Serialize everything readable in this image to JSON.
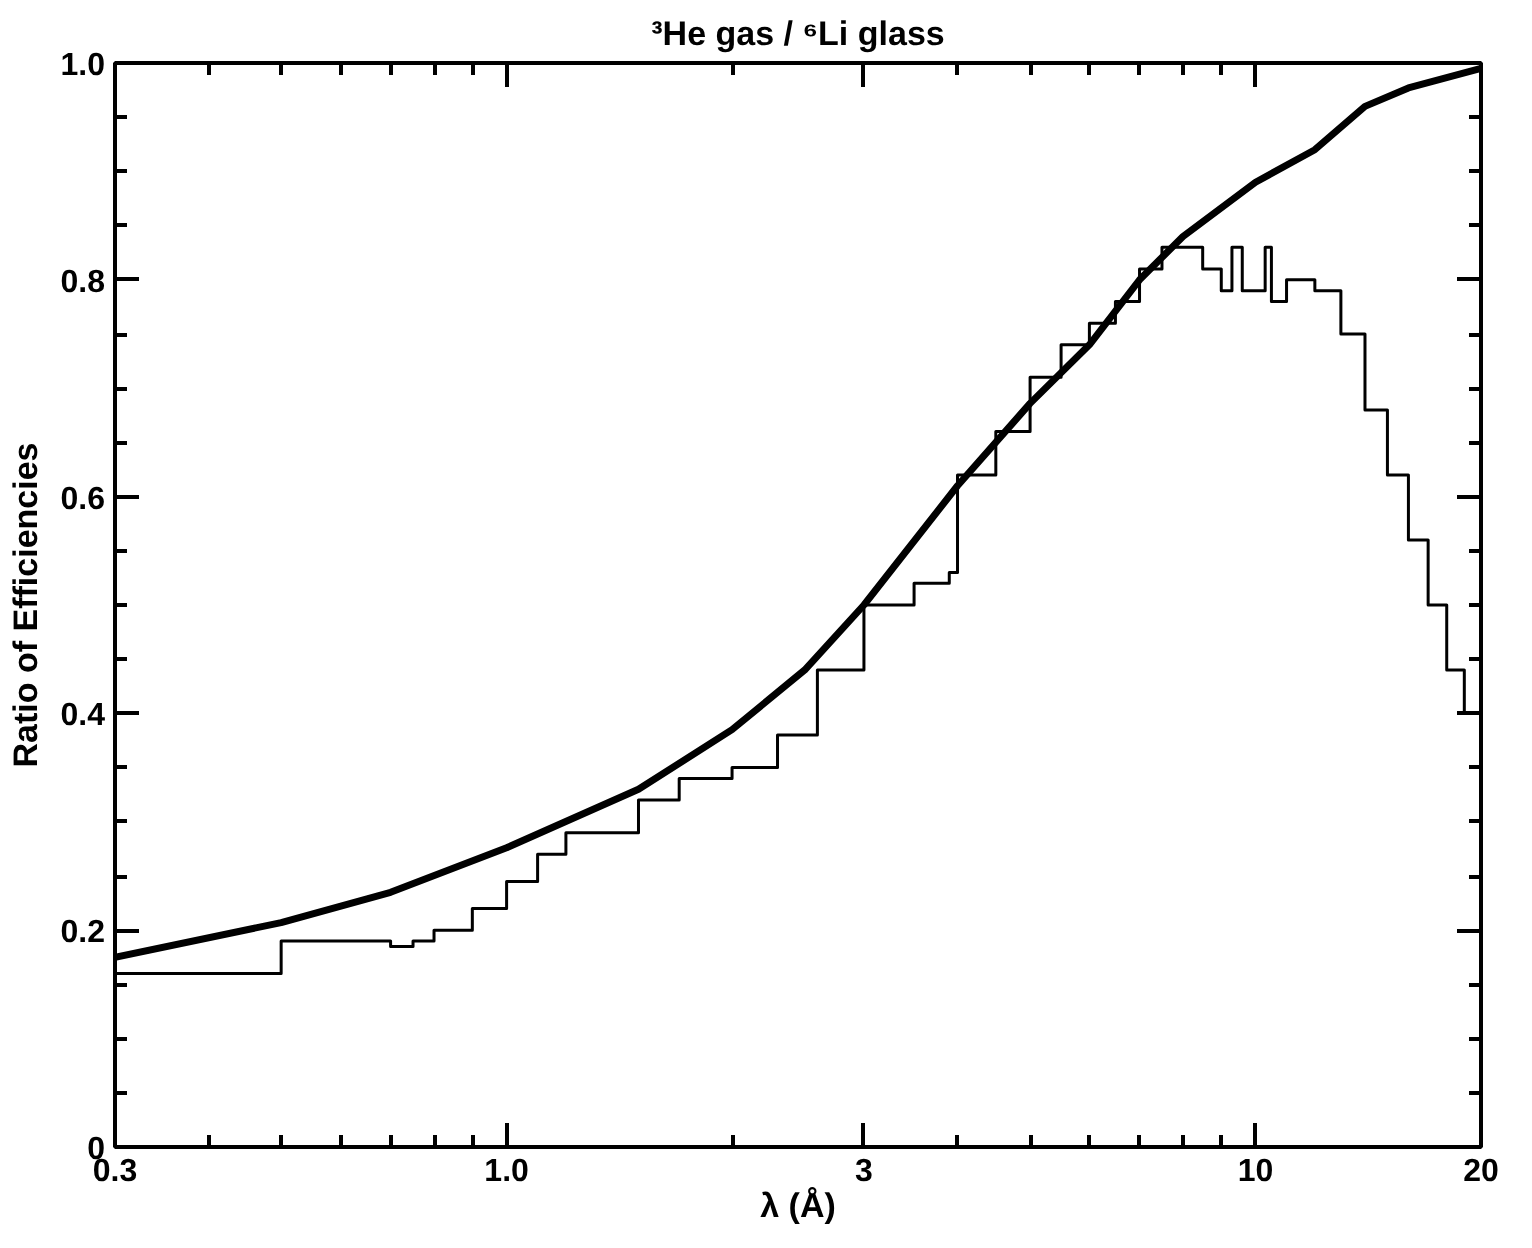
{
  "chart_data": {
    "type": "line",
    "title": "³He gas / ⁶Li glass",
    "xlabel": "λ (Å)",
    "ylabel": "Ratio of Efficiencies",
    "log": "x",
    "xlim": [
      0.3,
      20
    ],
    "ylim": [
      0,
      1.0
    ],
    "xticks": [
      0.3,
      {
        "value": 1.0,
        "label": "1.0"
      },
      3,
      10,
      20
    ],
    "yticks": [
      0,
      0.2,
      0.4,
      0.6,
      0.8,
      {
        "value": 1.0,
        "label": "1.0"
      }
    ],
    "grid": false,
    "series": [
      {
        "color": "#000000",
        "x": [
          0.3,
          0.5,
          0.7,
          1.0,
          1.5,
          2.0,
          2.5,
          3.0,
          4.0,
          5.0,
          6.0,
          7.0,
          8.0,
          10.0,
          12.0,
          14.0,
          16.0,
          20.0
        ],
        "values": [
          0.175,
          0.207,
          0.235,
          0.276,
          0.33,
          0.385,
          0.44,
          0.5,
          0.61,
          0.686,
          0.74,
          0.8,
          0.84,
          0.89,
          0.92,
          0.96,
          0.977,
          0.995
        ]
      },
      {
        "type": "step",
        "color": "#000000",
        "x": [
          0.3,
          0.5,
          0.6,
          0.7,
          0.75,
          0.8,
          0.9,
          1.0,
          1.1,
          1.2,
          1.5,
          1.7,
          2.0,
          2.3,
          2.6,
          3.0,
          3.5,
          3.9,
          4.0,
          4.5,
          5.0,
          5.5,
          6.0,
          6.5,
          7.0,
          7.5,
          8.0,
          8.5,
          9.0,
          9.3,
          9.6,
          10.0,
          10.3,
          10.5,
          11.0,
          12.0,
          13.0,
          14.0,
          15.0,
          16.0,
          17.0,
          18.0,
          19.0,
          19.5
        ],
        "values": [
          0.16,
          0.19,
          0.19,
          0.185,
          0.19,
          0.2,
          0.22,
          0.245,
          0.27,
          0.29,
          0.32,
          0.34,
          0.35,
          0.38,
          0.44,
          0.5,
          0.52,
          0.53,
          0.62,
          0.66,
          0.71,
          0.74,
          0.76,
          0.78,
          0.81,
          0.83,
          0.83,
          0.81,
          0.79,
          0.83,
          0.79,
          0.79,
          0.83,
          0.78,
          0.8,
          0.79,
          0.75,
          0.68,
          0.62,
          0.56,
          0.5,
          0.44,
          0.4,
          0.4
        ]
      }
    ]
  }
}
